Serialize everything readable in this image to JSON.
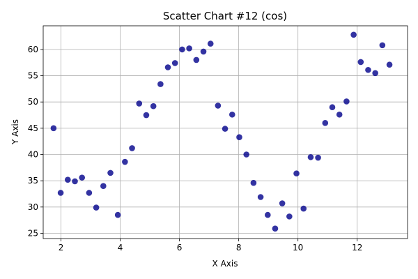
{
  "chart_data": {
    "type": "scatter",
    "title": "Scatter Chart #12 (cos)",
    "xlabel": "X Axis",
    "ylabel": "Y Axis",
    "xlim": [
      1.4,
      13.7
    ],
    "ylim": [
      24,
      64.5
    ],
    "xticks": [
      2,
      4,
      6,
      8,
      10,
      12
    ],
    "yticks": [
      25,
      30,
      35,
      40,
      45,
      50,
      55,
      60
    ],
    "grid": true,
    "marker_color": "#00008b",
    "marker_opacity": 0.8,
    "series": [
      {
        "points": [
          [
            1.75,
            45.0
          ],
          [
            1.99,
            32.7
          ],
          [
            2.23,
            35.2
          ],
          [
            2.47,
            34.9
          ],
          [
            2.71,
            35.6
          ],
          [
            2.95,
            32.7
          ],
          [
            3.19,
            29.9
          ],
          [
            3.43,
            34.0
          ],
          [
            3.67,
            36.5
          ],
          [
            3.92,
            28.5
          ],
          [
            4.16,
            38.6
          ],
          [
            4.4,
            41.2
          ],
          [
            4.64,
            49.7
          ],
          [
            4.88,
            47.5
          ],
          [
            5.12,
            49.2
          ],
          [
            5.36,
            53.4
          ],
          [
            5.61,
            56.6
          ],
          [
            5.85,
            57.4
          ],
          [
            6.09,
            60.0
          ],
          [
            6.33,
            60.2
          ],
          [
            6.57,
            58.0
          ],
          [
            6.81,
            59.6
          ],
          [
            7.05,
            61.1
          ],
          [
            7.3,
            49.3
          ],
          [
            7.54,
            44.9
          ],
          [
            7.78,
            47.6
          ],
          [
            8.02,
            43.3
          ],
          [
            8.26,
            40.0
          ],
          [
            8.5,
            34.6
          ],
          [
            8.74,
            31.9
          ],
          [
            8.98,
            28.5
          ],
          [
            9.23,
            25.9
          ],
          [
            9.47,
            30.7
          ],
          [
            9.71,
            28.2
          ],
          [
            9.95,
            36.4
          ],
          [
            10.19,
            29.7
          ],
          [
            10.43,
            39.5
          ],
          [
            10.68,
            39.4
          ],
          [
            10.92,
            46.0
          ],
          [
            11.16,
            49.0
          ],
          [
            11.4,
            47.6
          ],
          [
            11.64,
            50.1
          ],
          [
            11.88,
            62.8
          ],
          [
            12.12,
            57.6
          ],
          [
            12.37,
            56.1
          ],
          [
            12.61,
            55.5
          ],
          [
            12.85,
            60.8
          ],
          [
            13.09,
            57.1
          ]
        ]
      }
    ]
  }
}
